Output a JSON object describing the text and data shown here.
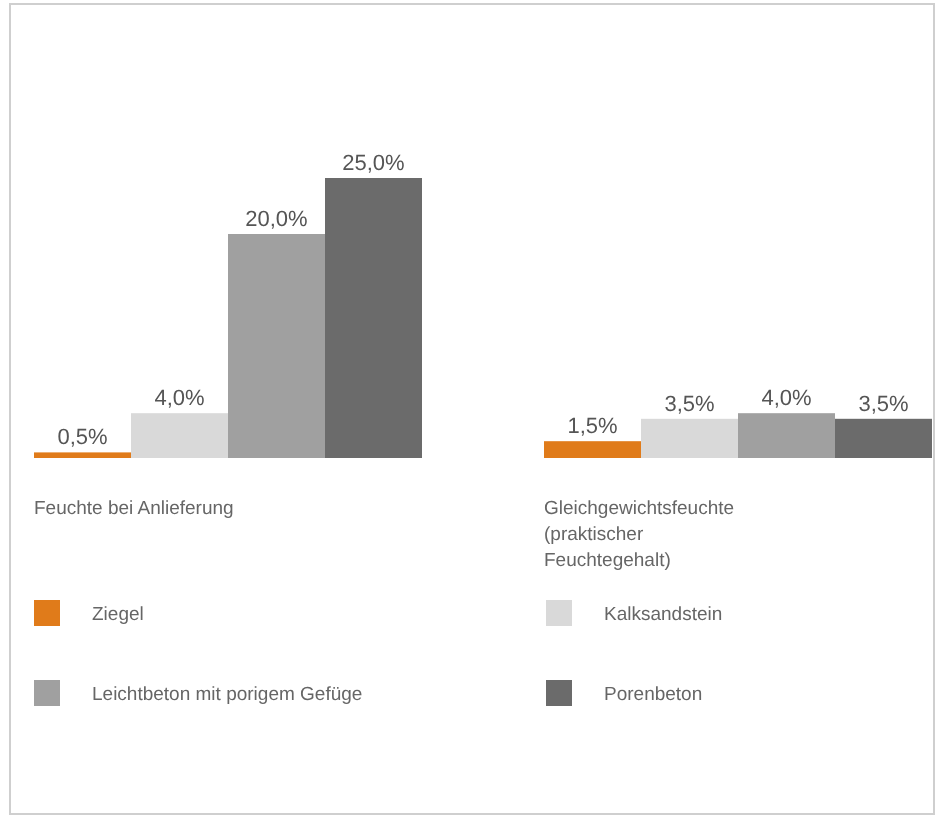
{
  "chart_data": {
    "type": "bar",
    "categories": [
      "Feuchte bei Anlieferung",
      "Gleichgewichtsfeuchte (praktischer Feuchtegehalt)"
    ],
    "series": [
      {
        "name": "Ziegel",
        "color": "#e07b1a",
        "values": [
          0.5,
          1.5
        ],
        "value_labels": [
          "0,5%",
          "1,5%"
        ]
      },
      {
        "name": "Kalksandstein",
        "color": "#d9d9d9",
        "values": [
          4.0,
          3.5
        ],
        "value_labels": [
          "4,0%",
          "3,5%"
        ]
      },
      {
        "name": "Leichtbeton mit porigem Gefüge",
        "color": "#a0a0a0",
        "values": [
          20.0,
          4.0
        ],
        "value_labels": [
          "20,0%",
          "4,0%"
        ]
      },
      {
        "name": "Porenbeton",
        "color": "#6b6b6b",
        "values": [
          25.0,
          3.5
        ],
        "value_labels": [
          "25,0%",
          "3,5%"
        ]
      }
    ],
    "legend": "bottom"
  }
}
